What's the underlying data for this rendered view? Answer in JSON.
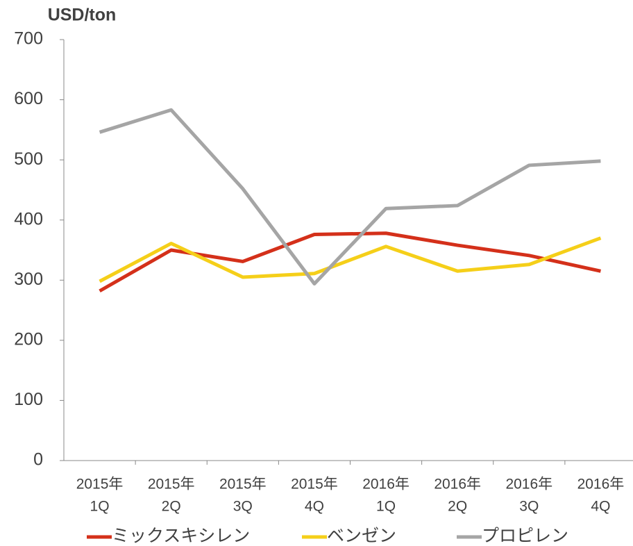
{
  "chart_data": {
    "type": "line",
    "title": "USD/ton",
    "categories": [
      [
        "2015年",
        "1Q"
      ],
      [
        "2015年",
        "2Q"
      ],
      [
        "2015年",
        "3Q"
      ],
      [
        "2015年",
        "4Q"
      ],
      [
        "2016年",
        "1Q"
      ],
      [
        "2016年",
        "2Q"
      ],
      [
        "2016年",
        "3Q"
      ],
      [
        "2016年",
        "4Q"
      ]
    ],
    "series": [
      {
        "name": "ミックスキシレン",
        "color": "#d4301a",
        "values": [
          282,
          350,
          331,
          376,
          378,
          358,
          341,
          315
        ]
      },
      {
        "name": "ベンゼン",
        "color": "#f5cf19",
        "values": [
          298,
          361,
          305,
          311,
          356,
          315,
          326,
          370
        ]
      },
      {
        "name": "プロピレン",
        "color": "#a5a5a5",
        "values": [
          546,
          583,
          452,
          294,
          419,
          424,
          491,
          498
        ]
      }
    ],
    "ylim": [
      0,
      700
    ],
    "yticks": [
      0,
      100,
      200,
      300,
      400,
      500,
      600,
      700
    ],
    "legend": "bottom"
  }
}
